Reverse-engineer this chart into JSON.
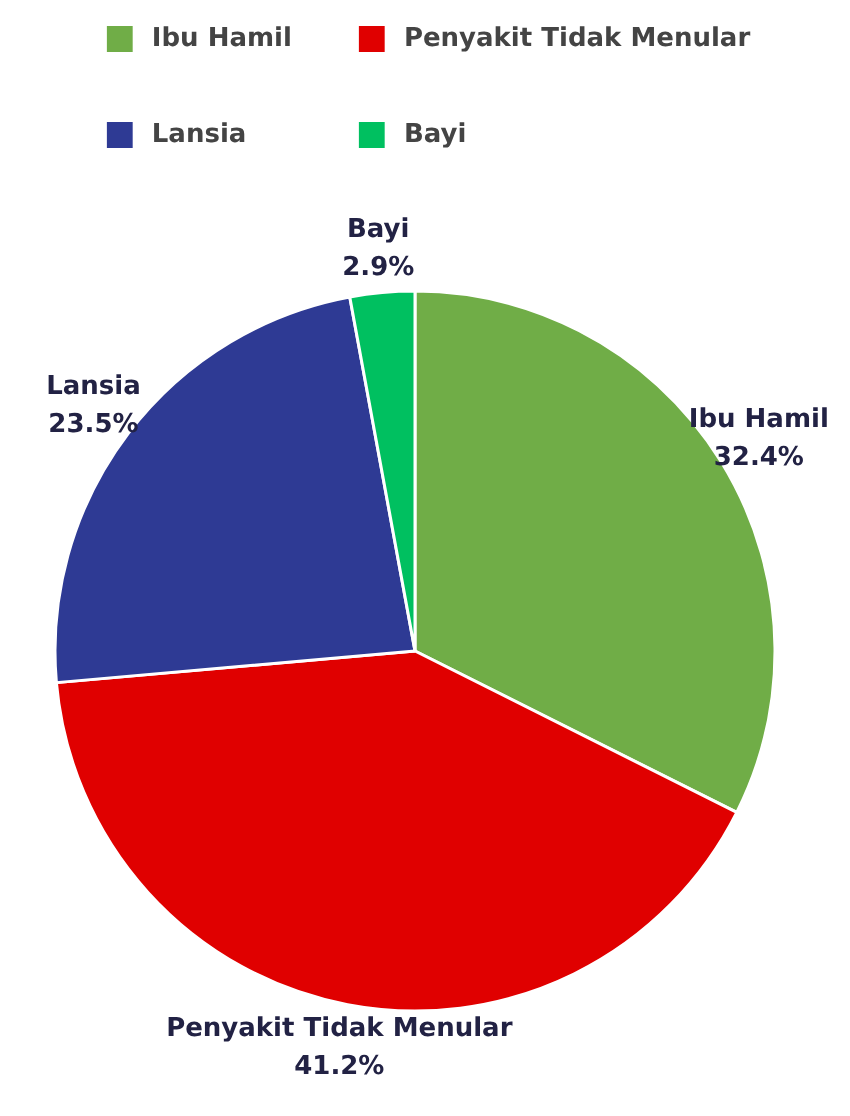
{
  "chart_data": {
    "type": "pie",
    "categories": [
      "Ibu Hamil",
      "Penyakit Tidak Menular",
      "Lansia",
      "Bayi"
    ],
    "values": [
      32.4,
      41.2,
      23.5,
      2.9
    ],
    "colors": [
      "#70ad47",
      "#e00000",
      "#2e3a94",
      "#00c060"
    ],
    "value_labels": [
      "32.4%",
      "41.2%",
      "23.5%",
      "2.9%"
    ],
    "legend": "top"
  }
}
